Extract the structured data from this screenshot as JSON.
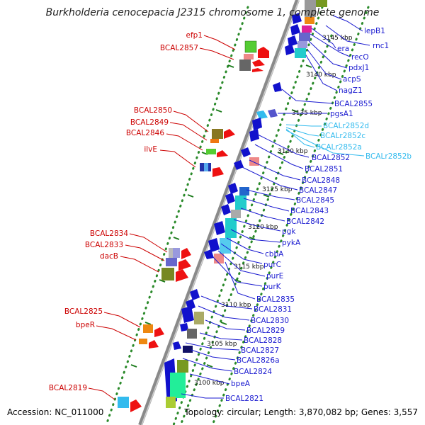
{
  "title": "Burkholderia cenocepacia J2315 chromosome 1, complete genome",
  "footer": {
    "accession": "Accession: NC_011000",
    "summary": "Topology: circular; Length: 3,870,082 bp; Genes: 3,557"
  },
  "colors": {
    "left_label": "#cc0000",
    "right_label": "#1a1ad0",
    "rna_label": "#33bbee",
    "backbone": "#8a8a8a",
    "guide_dots": "#2a8a2a"
  },
  "ticks": [
    "3145 kbp",
    "3140 kbp",
    "3135 kbp",
    "3130 kbp",
    "3125 kbp",
    "3120 kbp",
    "3115 kbp",
    "3110 kbp",
    "3105 kbp",
    "3100 kbp"
  ],
  "left_genes": [
    "efp1",
    "BCAL2857",
    "BCAL2850",
    "BCAL2849",
    "BCAL2846",
    "ilvE",
    "BCAL2834",
    "BCAL2833",
    "dacB",
    "BCAL2825",
    "bpeR",
    "BCAL2819"
  ],
  "right_genes": [
    "lepB1",
    "rnc1",
    "era",
    "recO",
    "pdxJ1",
    "acpS",
    "nagZ1",
    "BCAL2855",
    "pgsA1",
    "BCAL2852",
    "BCAL2851",
    "BCAL2848",
    "BCAL2847",
    "BCAL2845",
    "BCAL2843",
    "BCAL2842",
    "pgk",
    "pykA",
    "cbbA",
    "purC",
    "purE",
    "purK",
    "BCAL2835",
    "BCAL2831",
    "BCAL2830",
    "BCAL2829",
    "BCAL2828",
    "BCAL2827",
    "BCAL2826a",
    "BCAL2824",
    "bpeA",
    "BCAL2821"
  ],
  "rna_genes": [
    "BCALr2852d",
    "BCALr2852c",
    "BCALr2852a",
    "BCALr2852b"
  ]
}
